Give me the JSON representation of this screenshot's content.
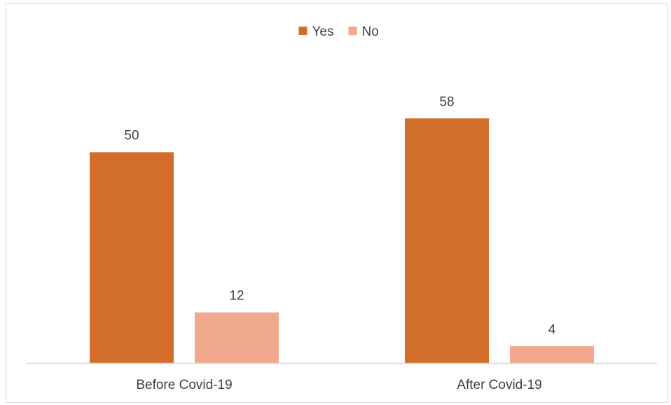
{
  "chart_data": {
    "type": "bar",
    "categories": [
      "Before Covid-19",
      "After Covid-19"
    ],
    "series": [
      {
        "name": "Yes",
        "values": [
          50,
          58
        ],
        "color": "#D26E2A"
      },
      {
        "name": "No",
        "values": [
          12,
          4
        ],
        "color": "#F0A98C"
      }
    ],
    "title": "",
    "xlabel": "",
    "ylabel": "",
    "ylim": [
      0,
      60
    ],
    "grid": false,
    "legend": "top-center",
    "data_labels": true
  }
}
